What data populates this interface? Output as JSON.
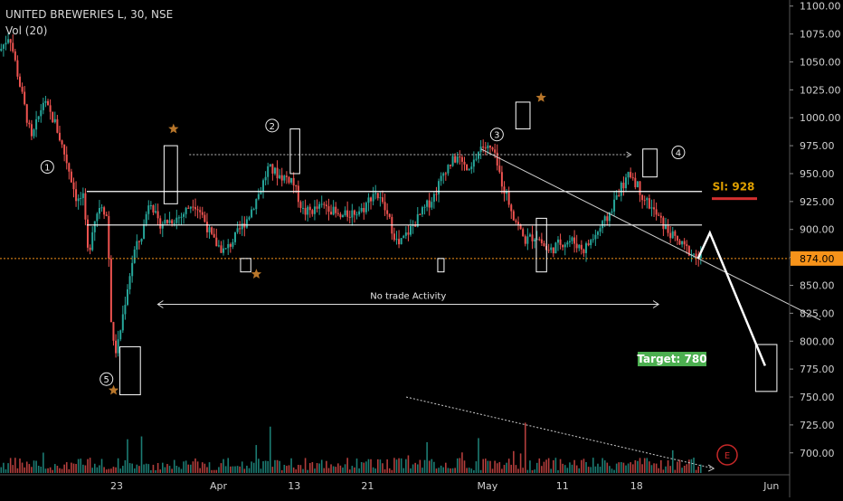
{
  "header": {
    "symbol": "UNITED BREWERIES L, 30, NSE",
    "volume_label": "Vol (20)"
  },
  "chart_data": {
    "type": "candlestick",
    "title": "UNITED BREWERIES L, 30, NSE",
    "ylim": [
      682,
      1103
    ],
    "y_ticks": [
      700,
      725,
      750,
      775,
      800,
      825,
      850,
      875,
      900,
      925,
      950,
      975,
      1000,
      1025,
      1050,
      1075,
      1100
    ],
    "y_tick_labels": [
      "700.00",
      "725.00",
      "750.00",
      "775.00",
      "800.00",
      "825.00",
      "850.00",
      "875.00",
      "900.00",
      "925.00",
      "950.00",
      "975.00",
      "1000.00",
      "1025.00",
      "1050.00",
      "1075.00",
      "1100.00"
    ],
    "x_labels": [
      "23",
      "Apr",
      "13",
      "21",
      "May",
      "11",
      "18",
      "Jun"
    ],
    "current_price": 874,
    "current_price_label": "874.00",
    "horizontal_levels": [
      874,
      904,
      934
    ],
    "grid": false,
    "price_path": [
      [
        0,
        1060
      ],
      [
        0.012,
        1075
      ],
      [
        0.025,
        1030
      ],
      [
        0.04,
        980
      ],
      [
        0.055,
        1015
      ],
      [
        0.07,
        995
      ],
      [
        0.085,
        960
      ],
      [
        0.098,
        925
      ],
      [
        0.105,
        930
      ],
      [
        0.112,
        875
      ],
      [
        0.118,
        905
      ],
      [
        0.128,
        925
      ],
      [
        0.136,
        910
      ],
      [
        0.142,
        800
      ],
      [
        0.148,
        790
      ],
      [
        0.155,
        820
      ],
      [
        0.162,
        850
      ],
      [
        0.17,
        880
      ],
      [
        0.18,
        895
      ],
      [
        0.19,
        930
      ],
      [
        0.2,
        905
      ],
      [
        0.215,
        908
      ],
      [
        0.23,
        912
      ],
      [
        0.245,
        925
      ],
      [
        0.255,
        915
      ],
      [
        0.27,
        890
      ],
      [
        0.285,
        880
      ],
      [
        0.3,
        895
      ],
      [
        0.315,
        912
      ],
      [
        0.33,
        935
      ],
      [
        0.34,
        955
      ],
      [
        0.355,
        948
      ],
      [
        0.37,
        945
      ],
      [
        0.385,
        915
      ],
      [
        0.4,
        918
      ],
      [
        0.415,
        922
      ],
      [
        0.43,
        910
      ],
      [
        0.445,
        915
      ],
      [
        0.46,
        918
      ],
      [
        0.475,
        935
      ],
      [
        0.49,
        915
      ],
      [
        0.505,
        885
      ],
      [
        0.52,
        900
      ],
      [
        0.535,
        915
      ],
      [
        0.55,
        930
      ],
      [
        0.565,
        955
      ],
      [
        0.58,
        965
      ],
      [
        0.595,
        950
      ],
      [
        0.61,
        975
      ],
      [
        0.625,
        970
      ],
      [
        0.635,
        945
      ],
      [
        0.65,
        915
      ],
      [
        0.665,
        890
      ],
      [
        0.68,
        895
      ],
      [
        0.695,
        880
      ],
      [
        0.71,
        888
      ],
      [
        0.725,
        890
      ],
      [
        0.74,
        882
      ],
      [
        0.755,
        895
      ],
      [
        0.77,
        910
      ],
      [
        0.785,
        935
      ],
      [
        0.8,
        950
      ],
      [
        0.815,
        930
      ],
      [
        0.83,
        915
      ],
      [
        0.845,
        900
      ],
      [
        0.86,
        888
      ],
      [
        0.875,
        880
      ],
      [
        0.885,
        875
      ],
      [
        0.89,
        874
      ]
    ],
    "annotations": {
      "wave_labels": [
        {
          "text": "1",
          "x": 0.06,
          "y": 956
        },
        {
          "text": "2",
          "x": 0.345,
          "y": 993
        },
        {
          "text": "3",
          "x": 0.63,
          "y": 985
        },
        {
          "text": "4",
          "x": 0.86,
          "y": 969
        },
        {
          "text": "5",
          "x": 0.135,
          "y": 766
        }
      ],
      "stars": [
        {
          "x": 0.22,
          "y": 990
        },
        {
          "x": 0.325,
          "y": 860
        },
        {
          "x": 0.686,
          "y": 1018
        },
        {
          "x": 0.144,
          "y": 756
        }
      ],
      "highlight_boxes": [
        {
          "x0": 0.208,
          "x1": 0.225,
          "y0": 923,
          "y1": 975
        },
        {
          "x0": 0.368,
          "x1": 0.38,
          "y0": 950,
          "y1": 990
        },
        {
          "x0": 0.305,
          "x1": 0.318,
          "y0": 862,
          "y1": 874
        },
        {
          "x0": 0.654,
          "x1": 0.672,
          "y0": 990,
          "y1": 1014
        },
        {
          "x0": 0.815,
          "x1": 0.833,
          "y0": 947,
          "y1": 972
        },
        {
          "x0": 0.555,
          "x1": 0.563,
          "y0": 862,
          "y1": 874
        },
        {
          "x0": 0.68,
          "x1": 0.693,
          "y0": 862,
          "y1": 910
        },
        {
          "x0": 0.152,
          "x1": 0.178,
          "y0": 752,
          "y1": 795
        },
        {
          "x0": 0.958,
          "x1": 0.985,
          "y0": 755,
          "y1": 797
        }
      ],
      "range_arrow": {
        "x0": 0.2,
        "x1": 0.835,
        "y": 833,
        "label": "No trade Activity"
      },
      "dotted_resistance_arrow": {
        "x0": 0.24,
        "x1": 0.8,
        "y": 967
      },
      "trendline": {
        "x0": 0.61,
        "y0": 972,
        "x1": 1.04,
        "y1": 819
      },
      "projection": [
        [
          0.885,
          874
        ],
        [
          0.9,
          897
        ],
        [
          0.97,
          778
        ]
      ],
      "volume_trend": {
        "x0": 0.515,
        "x1": 0.905,
        "y0": 750,
        "y1": 686
      }
    },
    "labels": {
      "stop_loss": "Sl: 928",
      "target": "Target: 780",
      "earnings_marker": "E"
    },
    "colors": {
      "up": "#26a69a",
      "down": "#ef5350",
      "price_line": "#f7931a",
      "level_line": "#ffffff",
      "star": "#b8762a",
      "stop_loss": "#e0a000",
      "stop_loss_bar": "#d32f2f",
      "target_bg": "#4caf50",
      "earnings": "#c62828"
    }
  }
}
